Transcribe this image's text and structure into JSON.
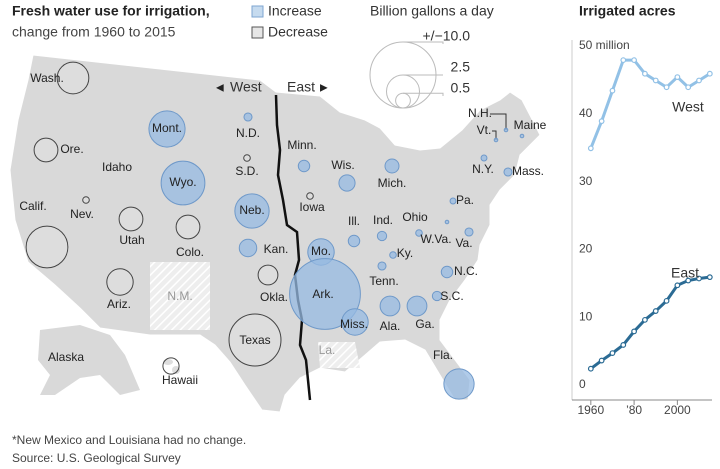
{
  "header": {
    "title": "Fresh water use for irrigation,",
    "subtitle": "change from 1960 to 2015"
  },
  "legend": {
    "increase": "Increase",
    "decrease": "Decrease",
    "unit": "Billion gallons a day",
    "sizes": [
      {
        "value": 10,
        "label": "+/−10.0"
      },
      2.5,
      0.5
    ]
  },
  "map": {
    "west": "West",
    "east": "East",
    "states": [
      {
        "label": "Wash.",
        "value": -2.3
      },
      {
        "label": "Ore.",
        "value": -1.3
      },
      {
        "label": "Idaho"
      },
      {
        "label": "Mont.",
        "value": 3.0
      },
      {
        "label": "Wyo.",
        "value": 4.4
      },
      {
        "label": "N.D.",
        "value": 0.15
      },
      {
        "label": "S.D.",
        "value": -0.1
      },
      {
        "label": "Neb.",
        "value": 2.7
      },
      {
        "label": "Kan.",
        "value": 0.7
      },
      {
        "label": "Okla.",
        "value": -0.9
      },
      {
        "label": "Texas",
        "value": -6.2
      },
      {
        "label": "Colo.",
        "value": -1.3
      },
      {
        "label": "Utah",
        "value": -1.3
      },
      {
        "label": "Nev.",
        "value": -0.1
      },
      {
        "label": "Calif.",
        "value": -4.0
      },
      {
        "label": "Ariz.",
        "value": -1.6
      },
      {
        "label": "N.M.",
        "value": 0
      },
      {
        "label": "Minn.",
        "value": 0.3
      },
      {
        "label": "Iowa",
        "value": -0.1
      },
      {
        "label": "Wis.",
        "value": 0.6
      },
      {
        "label": "Mich.",
        "value": 0.45
      },
      {
        "label": "Ill.",
        "value": 0.3
      },
      {
        "label": "Ind.",
        "value": 0.2
      },
      {
        "label": "Ohio",
        "value": 0.1
      },
      {
        "label": "Mo.",
        "value": 1.6
      },
      {
        "label": "Ark.",
        "value": 11.5
      },
      {
        "label": "Miss.",
        "value": 1.6
      },
      {
        "label": "La.",
        "value": 0
      },
      {
        "label": "Tenn.",
        "value": 0.15
      },
      {
        "label": "Ky.",
        "value": 0.1
      },
      {
        "label": "Ala.",
        "value": 0.9
      },
      {
        "label": "Ga.",
        "value": 0.9
      },
      {
        "label": "Fla.",
        "value": 2.1
      },
      {
        "label": "S.C.",
        "value": 0.2
      },
      {
        "label": "N.C.",
        "value": 0.3
      },
      {
        "label": "Va.",
        "value": 0.15
      },
      {
        "label": "W.Va.",
        "value": 0.03
      },
      {
        "label": "Pa.",
        "value": 0.08
      },
      {
        "label": "N.Y.",
        "value": 0.08
      },
      {
        "label": "Mass.",
        "value": 0.15
      },
      {
        "label": "Maine",
        "value": 0.03
      },
      {
        "label": "Vt.",
        "value": 0.03
      },
      {
        "label": "N.H.",
        "value": 0.03
      },
      {
        "label": "Alaska"
      },
      {
        "label": "Hawaii",
        "value": -0.6
      }
    ]
  },
  "footnote": "*New Mexico  and Louisiana had no change.",
  "source": "Source: U.S. Geological Survey",
  "chart_data": {
    "type": "line",
    "title": "Irrigated acres",
    "x": [
      1960,
      1965,
      1970,
      1975,
      1980,
      1985,
      1990,
      1995,
      2000,
      2005,
      2010,
      2015
    ],
    "series": [
      {
        "name": "West",
        "color": "#92c1e6",
        "values": [
          35.5,
          39.5,
          44,
          48.5,
          48.5,
          46.5,
          45.5,
          44.5,
          46,
          44.5,
          45.5,
          46.5
        ]
      },
      {
        "name": "East",
        "color": "#2b6b94",
        "values": [
          3,
          4.2,
          5.3,
          6.5,
          8.5,
          10.2,
          11.5,
          13,
          15.3,
          16,
          16.3,
          16.5
        ]
      }
    ],
    "xlim": [
      1955,
      2016
    ],
    "ylim": [
      -2,
      52
    ],
    "xticks": [
      1960,
      {
        "value": 1980,
        "label": "’80"
      },
      2000
    ],
    "yticks": [
      0,
      10,
      20,
      30,
      40,
      {
        "value": 50,
        "label": "50 million"
      }
    ]
  }
}
